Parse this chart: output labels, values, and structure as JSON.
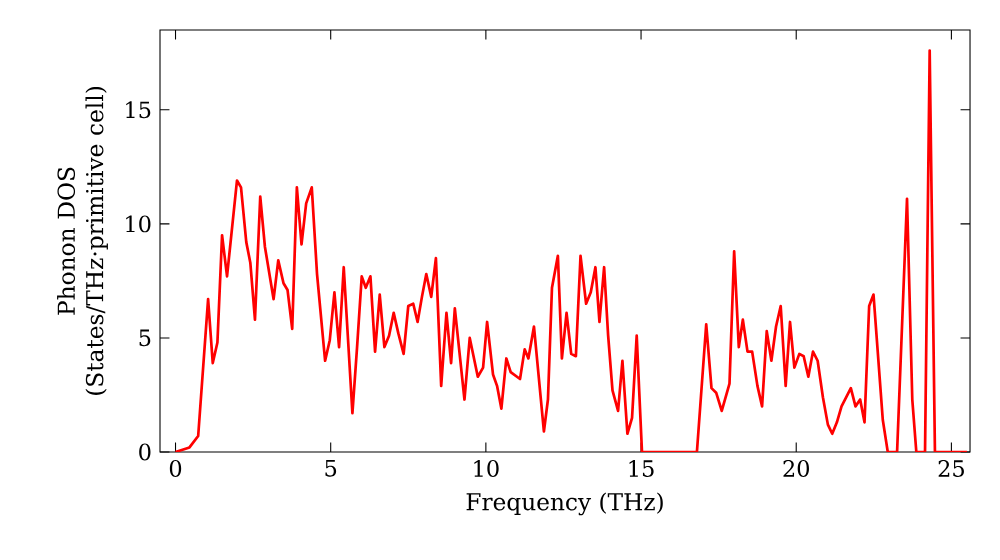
{
  "chart_data": {
    "type": "line",
    "xlabel": "Frequency (THz)",
    "ylabel": "Phonon DOS (States/THz·primitive cell)",
    "xlim": [
      -0.5,
      25.6
    ],
    "ylim": [
      0,
      18.5
    ],
    "xticks": [
      0,
      5,
      10,
      15,
      20,
      25
    ],
    "yticks": [
      0,
      5,
      10,
      15
    ],
    "marker": "none",
    "line_style": "solid",
    "series": [
      {
        "color": "#ff0000",
        "x": [
          0,
          0.45,
          0.73,
          1.05,
          1.2,
          1.35,
          1.5,
          1.66,
          1.98,
          2.11,
          2.28,
          2.41,
          2.56,
          2.73,
          2.88,
          3.16,
          3.31,
          3.48,
          3.61,
          3.76,
          3.91,
          4.06,
          4.21,
          4.39,
          4.56,
          4.82,
          4.97,
          5.12,
          5.27,
          5.42,
          5.7,
          5.85,
          6.0,
          6.13,
          6.28,
          6.43,
          6.58,
          6.73,
          6.88,
          7.03,
          7.18,
          7.35,
          7.5,
          7.66,
          7.8,
          7.94,
          8.08,
          8.24,
          8.39,
          8.56,
          8.73,
          8.88,
          9.0,
          9.31,
          9.48,
          9.74,
          9.91,
          10.04,
          10.23,
          10.36,
          10.5,
          10.66,
          10.8,
          11.1,
          11.25,
          11.37,
          11.55,
          11.87,
          12.0,
          12.13,
          12.32,
          12.45,
          12.6,
          12.75,
          12.9,
          13.05,
          13.23,
          13.38,
          13.53,
          13.66,
          13.81,
          13.94,
          14.08,
          14.26,
          14.4,
          14.56,
          14.71,
          14.86,
          15.03,
          16.8,
          17.1,
          17.27,
          17.42,
          17.6,
          17.85,
          18.0,
          18.15,
          18.28,
          18.43,
          18.58,
          18.75,
          18.9,
          19.05,
          19.2,
          19.35,
          19.5,
          19.66,
          19.8,
          19.94,
          20.1,
          20.24,
          20.39,
          20.54,
          20.69,
          20.86,
          21.02,
          21.16,
          21.31,
          21.46,
          21.76,
          21.91,
          22.06,
          22.2,
          22.35,
          22.49,
          22.79,
          22.95,
          23.25,
          23.57,
          23.74,
          23.87,
          24.15,
          24.3,
          24.47,
          25.5
        ],
        "values": [
          0,
          0.2,
          0.7,
          6.7,
          3.9,
          4.8,
          9.5,
          7.7,
          11.9,
          11.6,
          9.2,
          8.3,
          5.8,
          11.2,
          9.0,
          6.7,
          8.4,
          7.4,
          7.1,
          5.4,
          11.6,
          9.1,
          10.9,
          11.6,
          7.8,
          4.0,
          4.9,
          7.0,
          4.6,
          8.1,
          1.7,
          4.6,
          7.7,
          7.2,
          7.7,
          4.4,
          6.9,
          4.6,
          5.1,
          6.1,
          5.2,
          4.3,
          6.4,
          6.5,
          5.7,
          6.8,
          7.8,
          6.8,
          8.5,
          2.9,
          6.1,
          3.9,
          6.3,
          2.3,
          5.0,
          3.3,
          3.7,
          5.7,
          3.4,
          2.9,
          1.9,
          4.1,
          3.5,
          3.2,
          4.5,
          4.1,
          5.5,
          0.9,
          2.3,
          7.2,
          8.6,
          4.1,
          6.1,
          4.3,
          4.2,
          8.6,
          6.5,
          7.0,
          8.1,
          5.7,
          8.1,
          5.1,
          2.7,
          1.8,
          4.0,
          0.8,
          1.5,
          5.1,
          0,
          0,
          5.6,
          2.8,
          2.6,
          1.8,
          3.0,
          8.8,
          4.6,
          5.8,
          4.4,
          4.4,
          2.9,
          2.0,
          5.3,
          4.0,
          5.5,
          6.4,
          2.9,
          5.7,
          3.7,
          4.3,
          4.2,
          3.3,
          4.4,
          4.0,
          2.4,
          1.2,
          0.8,
          1.3,
          2.0,
          2.8,
          2.0,
          2.3,
          1.3,
          6.4,
          6.9,
          1.4,
          0,
          0,
          11.1,
          2.3,
          0,
          0,
          17.6,
          0,
          0
        ]
      }
    ]
  }
}
